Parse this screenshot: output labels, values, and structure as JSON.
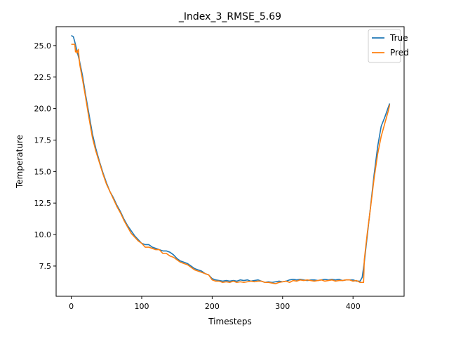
{
  "chart_data": {
    "type": "line",
    "title": "_Index_3_RMSE_5.69",
    "xlabel": "Timesteps",
    "ylabel": "Temperature",
    "xlim": [
      -21.5,
      472.5
    ],
    "ylim": [
      5.1,
      26.5
    ],
    "x_ticks": [
      0,
      100,
      200,
      300,
      400
    ],
    "x_tick_labels": [
      "0",
      "100",
      "200",
      "300",
      "400"
    ],
    "y_ticks": [
      7.5,
      10.0,
      12.5,
      15.0,
      17.5,
      20.0,
      22.5,
      25.0
    ],
    "y_tick_labels": [
      "7.5",
      "10.0",
      "12.5",
      "15.0",
      "17.5",
      "20.0",
      "22.5",
      "25.0"
    ],
    "grid": false,
    "legend_position": "top-right",
    "series": [
      {
        "name": "True",
        "color": "#1f77b4",
        "x": [
          0,
          3,
          5,
          8,
          12,
          16,
          20,
          25,
          30,
          35,
          40,
          45,
          50,
          55,
          60,
          65,
          70,
          75,
          80,
          85,
          90,
          95,
          100,
          105,
          110,
          115,
          120,
          125,
          130,
          135,
          140,
          145,
          150,
          155,
          160,
          165,
          170,
          175,
          180,
          185,
          190,
          195,
          200,
          205,
          210,
          215,
          220,
          225,
          230,
          235,
          240,
          245,
          250,
          255,
          260,
          265,
          270,
          275,
          280,
          285,
          290,
          295,
          300,
          305,
          310,
          315,
          320,
          325,
          330,
          335,
          340,
          345,
          350,
          355,
          360,
          365,
          370,
          375,
          380,
          385,
          390,
          395,
          400,
          405,
          410,
          413,
          416,
          420,
          425,
          430,
          435,
          440,
          445,
          450,
          452
        ],
        "values": [
          25.8,
          25.7,
          25.3,
          24.6,
          23.7,
          22.6,
          21.2,
          19.6,
          18.0,
          16.8,
          15.8,
          14.9,
          14.1,
          13.4,
          12.9,
          12.3,
          11.8,
          11.2,
          10.7,
          10.3,
          9.9,
          9.6,
          9.3,
          9.2,
          9.2,
          9.0,
          8.9,
          8.8,
          8.7,
          8.7,
          8.6,
          8.4,
          8.1,
          7.9,
          7.8,
          7.7,
          7.5,
          7.3,
          7.2,
          7.1,
          6.9,
          6.8,
          6.5,
          6.4,
          6.35,
          6.3,
          6.35,
          6.3,
          6.35,
          6.3,
          6.4,
          6.35,
          6.4,
          6.3,
          6.35,
          6.4,
          6.3,
          6.2,
          6.25,
          6.2,
          6.25,
          6.3,
          6.25,
          6.3,
          6.4,
          6.45,
          6.4,
          6.45,
          6.4,
          6.35,
          6.4,
          6.4,
          6.35,
          6.4,
          6.45,
          6.4,
          6.45,
          6.4,
          6.45,
          6.35,
          6.4,
          6.4,
          6.4,
          6.3,
          6.3,
          6.6,
          7.8,
          9.8,
          12.3,
          14.8,
          17.0,
          18.6,
          19.3,
          20.1,
          20.4
        ]
      },
      {
        "name": "Pred",
        "color": "#ff7f0e",
        "x": [
          0,
          3,
          5,
          6,
          7,
          8,
          10,
          12,
          16,
          20,
          25,
          30,
          35,
          40,
          45,
          50,
          55,
          60,
          65,
          70,
          75,
          80,
          85,
          90,
          95,
          100,
          105,
          110,
          115,
          120,
          125,
          130,
          135,
          140,
          145,
          150,
          155,
          160,
          165,
          170,
          175,
          180,
          185,
          190,
          195,
          200,
          205,
          210,
          215,
          220,
          225,
          230,
          235,
          240,
          245,
          250,
          255,
          260,
          265,
          270,
          275,
          280,
          285,
          290,
          295,
          300,
          305,
          310,
          315,
          320,
          325,
          330,
          335,
          340,
          345,
          350,
          355,
          360,
          365,
          370,
          375,
          380,
          385,
          390,
          395,
          400,
          405,
          410,
          415,
          416,
          420,
          425,
          430,
          435,
          440,
          445,
          450,
          452
        ],
        "values": [
          25.1,
          25.1,
          25.1,
          24.5,
          24.6,
          24.4,
          24.7,
          23.5,
          22.3,
          21.0,
          19.3,
          17.7,
          16.6,
          15.7,
          14.8,
          14.0,
          13.4,
          12.8,
          12.2,
          11.7,
          11.1,
          10.6,
          10.1,
          9.8,
          9.5,
          9.3,
          9.0,
          9.0,
          8.9,
          8.8,
          8.8,
          8.5,
          8.5,
          8.3,
          8.2,
          8.0,
          7.8,
          7.7,
          7.6,
          7.4,
          7.2,
          7.1,
          7.0,
          6.9,
          6.8,
          6.4,
          6.3,
          6.3,
          6.2,
          6.25,
          6.2,
          6.3,
          6.2,
          6.25,
          6.2,
          6.25,
          6.3,
          6.25,
          6.3,
          6.3,
          6.2,
          6.2,
          6.15,
          6.1,
          6.2,
          6.25,
          6.3,
          6.2,
          6.35,
          6.3,
          6.4,
          6.35,
          6.4,
          6.35,
          6.3,
          6.35,
          6.4,
          6.3,
          6.35,
          6.4,
          6.3,
          6.35,
          6.35,
          6.4,
          6.4,
          6.3,
          6.35,
          6.2,
          6.2,
          8.0,
          10.0,
          12.2,
          14.5,
          16.4,
          17.8,
          18.8,
          19.8,
          20.3
        ]
      }
    ]
  }
}
